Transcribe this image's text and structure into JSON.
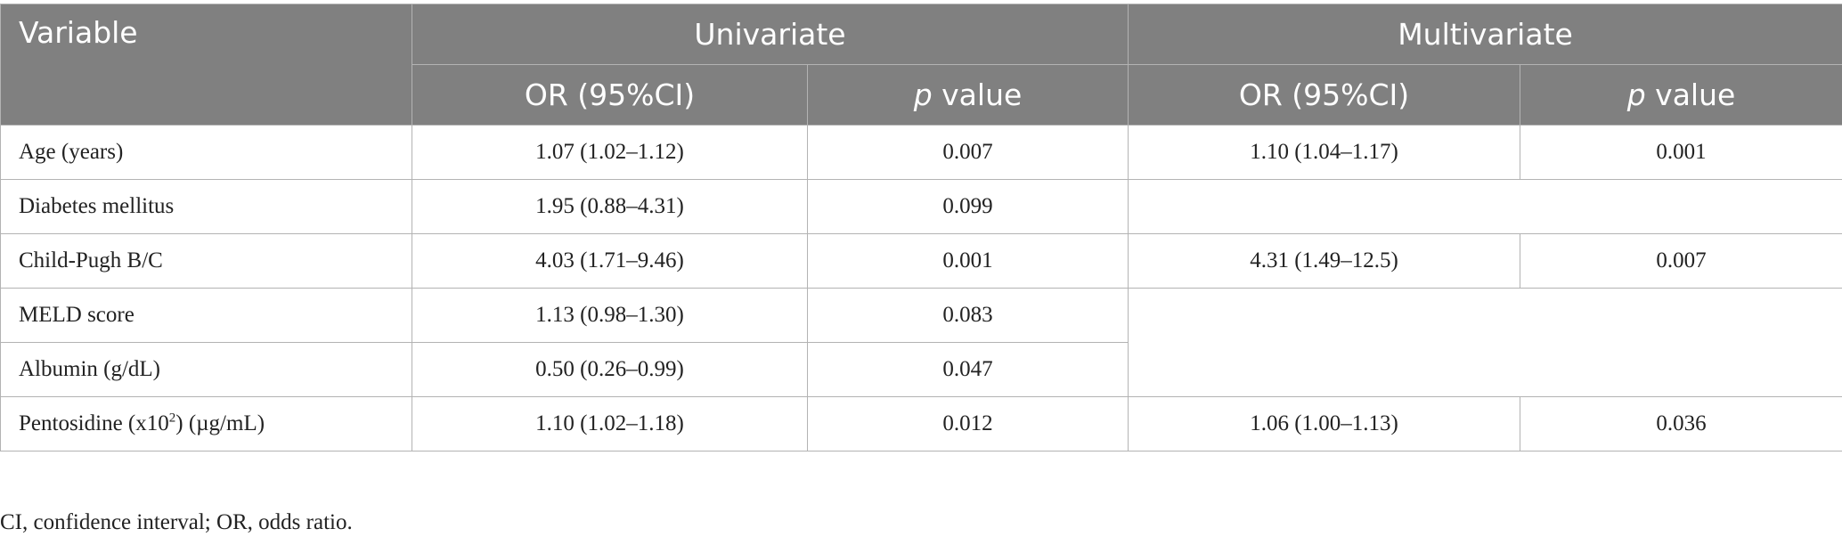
{
  "table": {
    "header": {
      "variable": "Variable",
      "univariate": "Univariate",
      "multivariate": "Multivariate",
      "or_ci": "OR (95%CI)",
      "p_italic": "p",
      "p_rest": " value"
    },
    "rows": [
      {
        "variable": "Age (years)",
        "uni_or": "1.07 (1.02–1.12)",
        "uni_p": "0.007",
        "multi_or": "1.10 (1.04–1.17)",
        "multi_p": "0.001"
      },
      {
        "variable": "Diabetes mellitus",
        "uni_or": "1.95 (0.88–4.31)",
        "uni_p": "0.099"
      },
      {
        "variable": "Child-Pugh B/C",
        "uni_or": "4.03 (1.71–9.46)",
        "uni_p": "0.001",
        "multi_or": "4.31 (1.49–12.5)",
        "multi_p": "0.007"
      },
      {
        "variable": "MELD score",
        "uni_or": "1.13 (0.98–1.30)",
        "uni_p": "0.083"
      },
      {
        "variable": "Albumin (g/dL)",
        "uni_or": "0.50 (0.26–0.99)",
        "uni_p": "0.047"
      },
      {
        "variable_prefix": "Pentosidine (x10",
        "variable_sup": "2",
        "variable_suffix": ") (µg/mL)",
        "uni_or": "1.10 (1.02–1.18)",
        "uni_p": "0.012",
        "multi_or": "1.06 (1.00–1.13)",
        "multi_p": "0.036"
      }
    ]
  },
  "footnote": "CI, confidence interval; OR, odds ratio."
}
